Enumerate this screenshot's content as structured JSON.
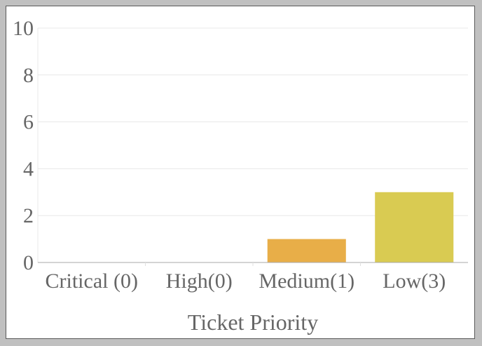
{
  "chart_data": {
    "type": "bar",
    "title": "",
    "xlabel": "Ticket Priority",
    "ylabel": "",
    "categories": [
      "Critical (0)",
      "High(0)",
      "Medium(1)",
      "Low(3)"
    ],
    "values": [
      0,
      0,
      1,
      3
    ],
    "bar_colors": [
      "#e05a4e",
      "#f08c3c",
      "#e8ae48",
      "#d9cb52"
    ],
    "ylim": [
      0,
      10
    ],
    "yticks": [
      "0",
      "2",
      "4",
      "6",
      "8",
      "10"
    ],
    "grid": true,
    "legend": "none"
  }
}
